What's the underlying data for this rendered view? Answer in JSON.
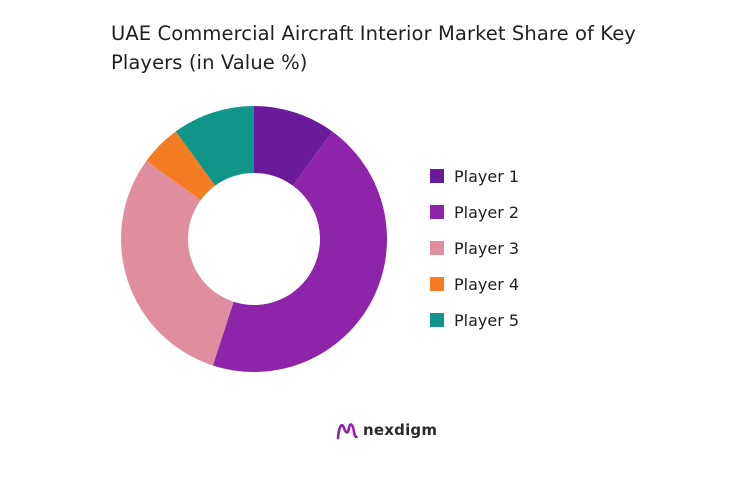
{
  "chart_data": {
    "type": "pie",
    "donut": true,
    "title": "UAE Commercial Aircraft Interior Market Share of Key Players (in Value %)",
    "legend_position": "right",
    "series": [
      {
        "name": "Player 1",
        "value": 10,
        "color": "#6a1b9a"
      },
      {
        "name": "Player 2",
        "value": 45,
        "color": "#8e24aa"
      },
      {
        "name": "Player 3",
        "value": 30,
        "color": "#e08da0"
      },
      {
        "name": "Player 4",
        "value": 5,
        "color": "#f57c20"
      },
      {
        "name": "Player 5",
        "value": 10,
        "color": "#0f9688"
      }
    ]
  },
  "brand": {
    "name": "nexdigm",
    "logo_color": "#8e24aa"
  }
}
